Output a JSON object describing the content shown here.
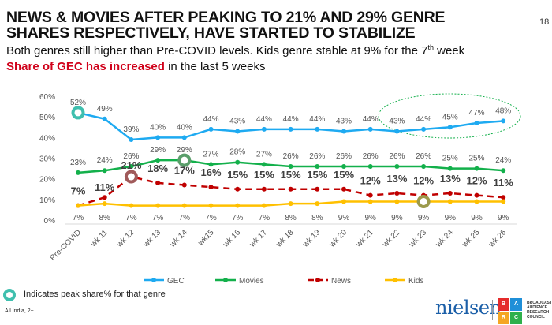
{
  "header": {
    "title": "NEWS & MOVIES AFTER PEAKING TO 21% AND 29% GENRE SHARES RESPECTIVELY, HAVE STARTED TO STABILIZE",
    "page_number": "18",
    "subtitle1_main": "Both genres still higher than Pre-COVID levels. Kids genre stable at 9% for the 7",
    "subtitle1_sup": "th",
    "subtitle1_end": " week",
    "subtitle2_highlight": "Share of GEC has increased",
    "subtitle2_rest": " in the last 5 weeks"
  },
  "footer": {
    "peak_note": "Indicates peak share% for that genre",
    "footnote": "All India, 2+",
    "brand": "nielsen",
    "barc_letters": [
      "B",
      "A",
      "R",
      "C"
    ],
    "barc_text": "BROADCAST AUDIENCE RESEARCH COUNCIL"
  },
  "chart_data": {
    "type": "line",
    "title": "",
    "xlabel": "",
    "ylabel": "",
    "ylim": [
      0,
      60
    ],
    "yticks": [
      "0%",
      "10%",
      "20%",
      "30%",
      "40%",
      "50%",
      "60%"
    ],
    "grid": false,
    "legend_position": "bottom",
    "categories": [
      "Pre-COVID",
      "wk 11",
      "wk 12",
      "wk 13",
      "wk 14",
      "wk15",
      "wk 16",
      "wk 17",
      "wk 18",
      "wk 19",
      "wk 20",
      "wk 21",
      "wk 22",
      "wk 23",
      "wk 24",
      "wk 25",
      "wk 26"
    ],
    "series": [
      {
        "name": "GEC",
        "color": "#1eaaf1",
        "dashed": false,
        "bold_labels": false,
        "values": [
          52,
          49,
          39,
          40,
          40,
          44,
          43,
          44,
          44,
          44,
          43,
          44,
          43,
          44,
          45,
          47,
          48
        ],
        "peak_index": 0,
        "peak_color": "#3fbfae"
      },
      {
        "name": "Movies",
        "color": "#13b04b",
        "dashed": false,
        "bold_labels": false,
        "values": [
          23,
          24,
          26,
          29,
          29,
          27,
          28,
          27,
          26,
          26,
          26,
          26,
          26,
          26,
          25,
          25,
          24
        ],
        "peak_index": 4,
        "peak_color": "#5a9e6a"
      },
      {
        "name": "News",
        "color": "#c00000",
        "dashed": true,
        "bold_labels": true,
        "values": [
          7,
          11,
          21,
          18,
          17,
          16,
          15,
          15,
          15,
          15,
          15,
          12,
          13,
          12,
          13,
          12,
          11
        ],
        "peak_index": 2,
        "peak_color": "#a05a5a"
      },
      {
        "name": "Kids",
        "color": "#ffc000",
        "dashed": false,
        "bold_labels": false,
        "values": [
          7,
          8,
          7,
          7,
          7,
          7,
          7,
          7,
          8,
          8,
          9,
          9,
          9,
          9,
          9,
          9,
          9
        ],
        "peak_index": 13,
        "peak_color": "#9c9a4c"
      }
    ],
    "annotations": [
      {
        "type": "dashed-ellipse",
        "around": "GEC wk 22 to wk 26",
        "color": "#13b04b"
      }
    ]
  }
}
